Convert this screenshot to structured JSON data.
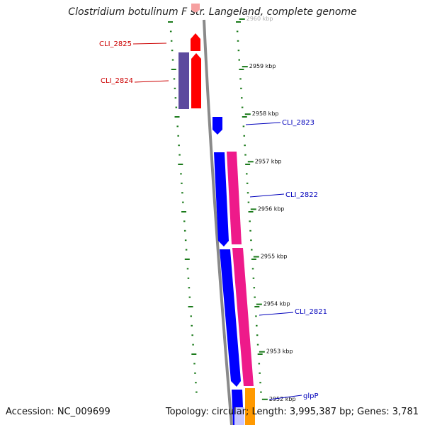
{
  "title": "Clostridium botulinum F str. Langeland, complete genome",
  "footer": {
    "accession": "Accession: NC_009699",
    "summary": "Topology: circular; Length: 3,995,387 bp; Genes: 3,781"
  },
  "colors": {
    "backbone": "#8a8a8a",
    "tick": "#1a7a1a",
    "label_reverse": "#cc0000",
    "label_forward": "#0000bb"
  },
  "ruler": [
    {
      "kbp": 2960,
      "label": "2960 kbp"
    },
    {
      "kbp": 2959,
      "label": "2959 kbp"
    },
    {
      "kbp": 2958,
      "label": "2958 kbp"
    },
    {
      "kbp": 2957,
      "label": "2957 kbp"
    },
    {
      "kbp": 2956,
      "label": "2956 kbp"
    },
    {
      "kbp": 2955,
      "label": "2955 kbp"
    },
    {
      "kbp": 2954,
      "label": "2954 kbp"
    },
    {
      "kbp": 2953,
      "label": "2953 kbp"
    },
    {
      "kbp": 2952,
      "label": "2952 kbp"
    }
  ],
  "gene_labels": [
    {
      "name": "CLI_2825",
      "strand": "reverse"
    },
    {
      "name": "CLI_2824",
      "strand": "reverse"
    },
    {
      "name": "CLI_2823",
      "strand": "forward"
    },
    {
      "name": "CLI_2822",
      "strand": "forward"
    },
    {
      "name": "CLI_2821",
      "strand": "forward"
    },
    {
      "name": "glpP",
      "strand": "forward"
    }
  ]
}
